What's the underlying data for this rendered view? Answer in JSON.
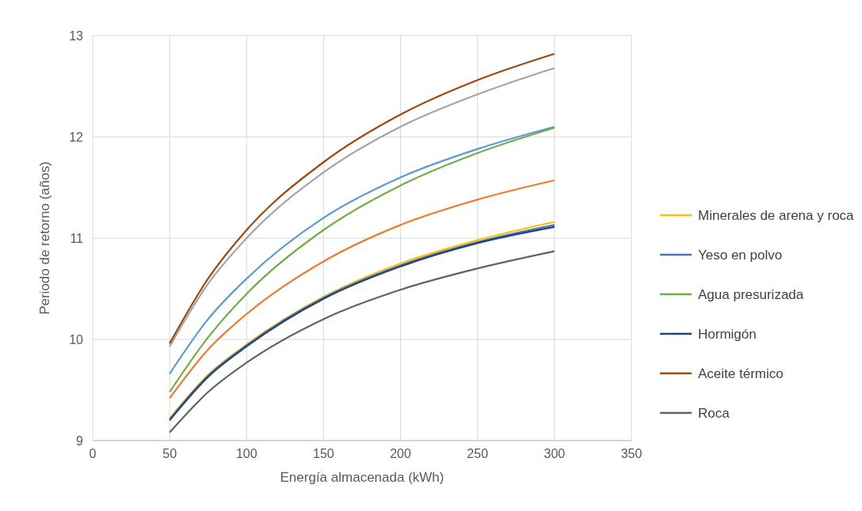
{
  "chart_data": {
    "type": "line",
    "xlabel": "Energía almacenada (kWh)",
    "ylabel": "Periodo de retorno (años)",
    "x": [
      50,
      75,
      100,
      150,
      200,
      250,
      300
    ],
    "xlim": [
      0,
      350
    ],
    "xticks": [
      0,
      50,
      100,
      150,
      200,
      250,
      300,
      350
    ],
    "ylim": [
      9,
      13
    ],
    "yticks": [
      9,
      10,
      11,
      12,
      13
    ],
    "grid": true,
    "legend": "right",
    "marker": "none",
    "line_style": "solid",
    "series": [
      {
        "color": "#5b9bd5",
        "values": [
          9.66,
          10.2,
          10.6,
          11.2,
          11.6,
          11.88,
          12.1
        ]
      },
      {
        "color": "#ed7d31",
        "values": [
          9.42,
          9.9,
          10.25,
          10.77,
          11.13,
          11.38,
          11.57
        ]
      },
      {
        "color": "#a5a5a5",
        "values": [
          9.93,
          10.55,
          11.0,
          11.65,
          12.1,
          12.42,
          12.68
        ]
      },
      {
        "name": "Minerales de arena y roca",
        "color": "#ffc000",
        "values": [
          9.22,
          9.65,
          9.95,
          10.42,
          10.75,
          10.98,
          11.16
        ]
      },
      {
        "name": "Yeso en polvo",
        "color": "#4472c4",
        "values": [
          9.21,
          9.64,
          9.94,
          10.41,
          10.73,
          10.96,
          11.13
        ]
      },
      {
        "name": "Agua presurizada",
        "color": "#70ad47",
        "values": [
          9.48,
          10.02,
          10.45,
          11.08,
          11.52,
          11.84,
          12.09
        ]
      },
      {
        "name": "Hormigón",
        "color": "#264478",
        "values": [
          9.2,
          9.63,
          9.93,
          10.4,
          10.72,
          10.95,
          11.11
        ]
      },
      {
        "name": "Aceite térmico",
        "color": "#9e480e",
        "values": [
          9.96,
          10.6,
          11.08,
          11.75,
          12.22,
          12.56,
          12.82
        ]
      },
      {
        "name": "Roca",
        "color": "#636363",
        "values": [
          9.08,
          9.48,
          9.77,
          10.2,
          10.49,
          10.7,
          10.87
        ]
      }
    ]
  }
}
